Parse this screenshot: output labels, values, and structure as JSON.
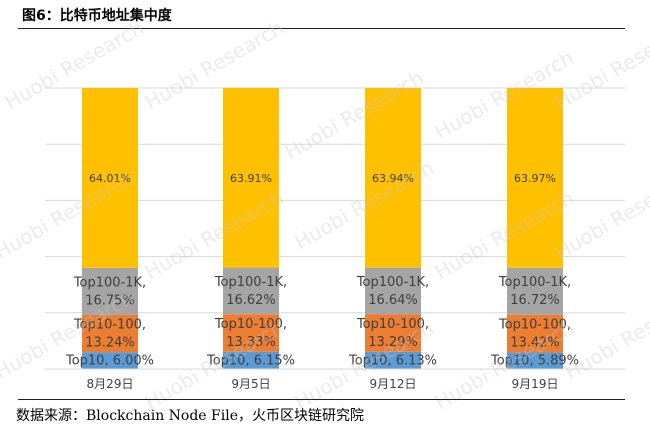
{
  "figure": {
    "title": "图6：比特币地址集中度",
    "source": "数据来源：Blockchain Node File，火币区块链研究院"
  },
  "watermark": {
    "text": "Huobi Research"
  },
  "colors": {
    "Top10": "#5b9bd5",
    "Top10-100": "#ed7d31",
    "Top100-1K": "#a5a5a5",
    "Other": "#ffc000"
  },
  "chart_data": {
    "type": "bar",
    "stacked": true,
    "categories": [
      "8月29日",
      "9月5日",
      "9月12日",
      "9月19日"
    ],
    "series": [
      {
        "name": "Top10",
        "values": [
          6.0,
          6.15,
          6.13,
          5.89
        ],
        "labels": [
          "Top10, 6.00%",
          "Top10, 6.15%",
          "Top10, 6.13%",
          "Top10, 5.89%"
        ]
      },
      {
        "name": "Top10-100",
        "values": [
          13.24,
          13.33,
          13.29,
          13.42
        ],
        "labels": [
          "Top10-100,\n13.24%",
          "Top10-100,\n13.33%",
          "Top10-100,\n13.29%",
          "Top10-100,\n13.42%"
        ]
      },
      {
        "name": "Top100-1K",
        "values": [
          16.75,
          16.62,
          16.64,
          16.72
        ],
        "labels": [
          "Top100-1K,\n16.75%",
          "Top100-1K,\n16.62%",
          "Top100-1K,\n16.64%",
          "Top100-1K,\n16.72%"
        ]
      },
      {
        "name": "",
        "values": [
          64.01,
          63.91,
          63.94,
          63.97
        ],
        "labels": [
          "64.01%",
          "63.91%",
          "63.94%",
          "63.97%"
        ]
      }
    ],
    "ylim": [
      0,
      100
    ],
    "xlabel": "",
    "ylabel": "",
    "grid": true,
    "legend": "none"
  }
}
